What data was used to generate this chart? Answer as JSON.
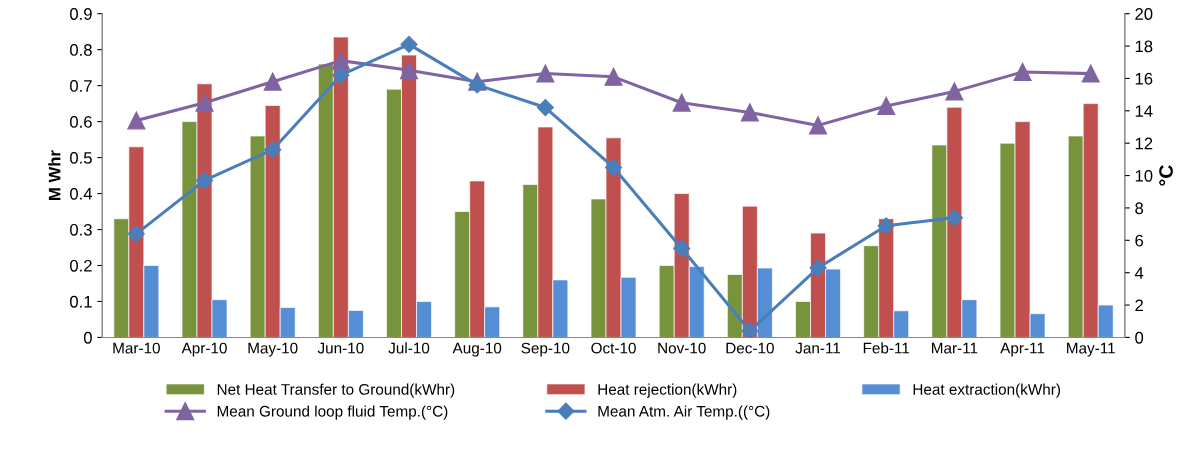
{
  "chart_data": {
    "type": "bar",
    "ylabel": "M Whr",
    "y2label": "°C",
    "categories": [
      "Mar-10",
      "Apr-10",
      "May-10",
      "Jun-10",
      "Jul-10",
      "Aug-10",
      "Sep-10",
      "Oct-10",
      "Nov-10",
      "Dec-10",
      "Jan-11",
      "Feb-11",
      "Mar-11",
      "Apr-11",
      "May-11"
    ],
    "series": [
      {
        "name": "Net Heat Transfer to Ground(kWhr)",
        "color": "#77933c",
        "values": [
          0.33,
          0.6,
          0.56,
          0.76,
          0.69,
          0.35,
          0.425,
          0.385,
          0.2,
          0.175,
          0.1,
          0.255,
          0.535,
          0.54,
          0.56
        ]
      },
      {
        "name": "Heat rejection(kWhr)",
        "color": "#c0504d",
        "values": [
          0.53,
          0.705,
          0.645,
          0.835,
          0.785,
          0.435,
          0.585,
          0.555,
          0.4,
          0.365,
          0.29,
          0.33,
          0.64,
          0.6,
          0.65
        ]
      },
      {
        "name": "Heat extraction(kWhr)",
        "color": "#558ed5",
        "values": [
          0.2,
          0.105,
          0.083,
          0.075,
          0.1,
          0.085,
          0.16,
          0.167,
          0.197,
          0.193,
          0.19,
          0.074,
          0.105,
          0.066,
          0.09
        ]
      },
      {
        "name": "Mean Ground loop fluid Temp.(°C)",
        "type": "line",
        "axis": "y2",
        "marker": "triangle",
        "color": "#8064a2",
        "values": [
          13.4,
          14.5,
          15.8,
          17.1,
          16.5,
          15.8,
          16.3,
          16.1,
          14.5,
          13.9,
          13.1,
          14.3,
          15.2,
          16.4,
          16.3
        ]
      },
      {
        "name": "Mean Atm. Air Temp.((°C)",
        "type": "line",
        "axis": "y2",
        "marker": "diamond",
        "color": "#4a7ebb",
        "values": [
          6.4,
          9.7,
          11.6,
          16.2,
          18.1,
          15.6,
          14.2,
          10.5,
          5.5,
          0.4,
          4.3,
          6.9,
          7.4,
          null,
          null
        ]
      }
    ],
    "ylim": [
      0,
      0.9
    ],
    "yticks": [
      0,
      0.1,
      0.2,
      0.3,
      0.4,
      0.5,
      0.6,
      0.7,
      0.8,
      0.9
    ],
    "y2lim": [
      0,
      20
    ],
    "y2ticks": [
      0,
      2,
      4,
      6,
      8,
      10,
      12,
      14,
      16,
      18,
      20
    ],
    "grid": false,
    "legend": "bottom"
  }
}
